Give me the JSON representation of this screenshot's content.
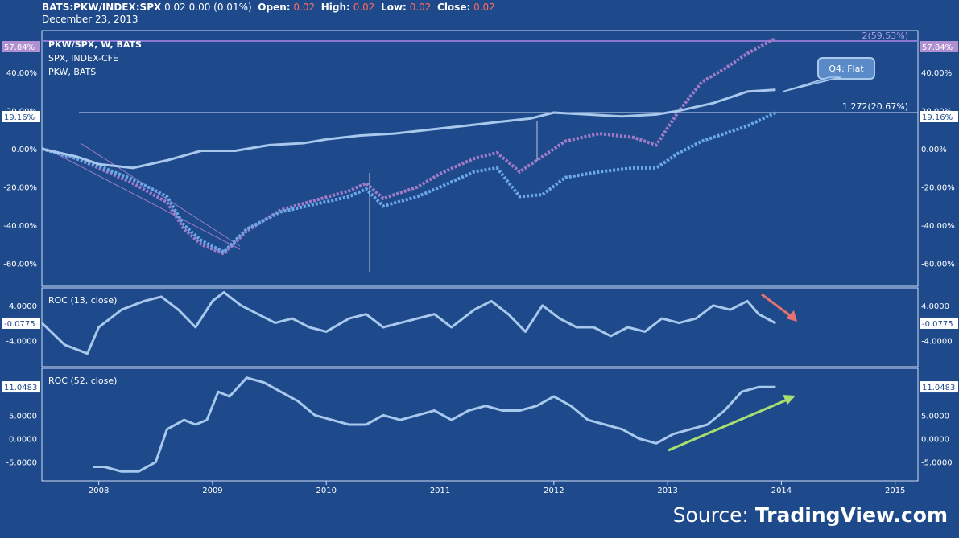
{
  "header": {
    "symbol": "BATS:PKW/INDEX:SPX",
    "last": "0.02",
    "change": "0.00",
    "change_pct": "(0.01%)",
    "open_label": "Open:",
    "open": "0.02",
    "high_label": "High:",
    "high": "0.02",
    "low_label": "Low:",
    "low": "0.02",
    "close_label": "Close:",
    "close": "0.02",
    "date": "December 23, 2013"
  },
  "source": {
    "prefix": "Source: ",
    "brand": "TradingView.com"
  },
  "colors": {
    "background": "#1e4a8c",
    "line": "#a8c8ec",
    "purple": "#a07cc8",
    "blue_candle": "#6aa8e8",
    "red_arrow": "#e87070",
    "green_arrow": "#a8e070",
    "label_bg": "#b090d0"
  },
  "chart_data": [
    {
      "type": "line",
      "panel": "main",
      "legend": [
        "PKW/SPX, W, BATS",
        "SPX, INDEX-CFE",
        "PKW, BATS"
      ],
      "x_ticks": [
        "2008",
        "2009",
        "2010",
        "2011",
        "2012",
        "2013",
        "2014",
        "2015"
      ],
      "y_ticks": [
        "40.00%",
        "20.00%",
        "0.00%",
        "-20.00%",
        "-40.00%",
        "-60.00%"
      ],
      "ylim": [
        -72,
        62
      ],
      "right_label_top": "57.84%",
      "right_label_mid": "19.16%",
      "fib_top": "2(59.53%)",
      "fib_mid": "1.272(20.67%)",
      "callout": "Q4: Flat",
      "series": [
        {
          "x": [
            2007.5,
            2007.8,
            2008.0,
            2008.3,
            2008.6,
            2008.9,
            2009.2,
            2009.5,
            2009.8,
            2010.0,
            2010.3,
            2010.6,
            2010.9,
            2011.2,
            2011.5,
            2011.8,
            2012.0,
            2012.3,
            2012.6,
            2012.9,
            2013.1,
            2013.4,
            2013.7,
            2013.95
          ],
          "values": [
            0,
            -4,
            -8,
            -10,
            -6,
            -1,
            -1,
            2,
            3,
            5,
            7,
            8,
            10,
            12,
            14,
            16,
            19,
            18,
            17,
            18,
            20,
            24,
            30,
            31
          ]
        },
        {
          "x": [
            2007.5,
            2007.8,
            2008.0,
            2008.3,
            2008.6,
            2008.75,
            2008.9,
            2009.1,
            2009.3,
            2009.6,
            2009.9,
            2010.2,
            2010.35,
            2010.5,
            2010.8,
            2011.0,
            2011.3,
            2011.5,
            2011.7,
            2011.9,
            2012.1,
            2012.4,
            2012.7,
            2012.9,
            2013.1,
            2013.3,
            2013.5,
            2013.7,
            2013.95
          ],
          "values": [
            0,
            -5,
            -10,
            -18,
            -28,
            -42,
            -50,
            -55,
            -43,
            -32,
            -27,
            -22,
            -18,
            -26,
            -20,
            -13,
            -5,
            -2,
            -12,
            -4,
            4,
            8,
            6,
            2,
            20,
            35,
            42,
            50,
            58
          ]
        },
        {
          "x": [
            2007.5,
            2007.8,
            2008.0,
            2008.3,
            2008.6,
            2008.75,
            2008.9,
            2009.1,
            2009.3,
            2009.6,
            2009.9,
            2010.2,
            2010.35,
            2010.5,
            2010.8,
            2011.0,
            2011.3,
            2011.5,
            2011.7,
            2011.9,
            2012.1,
            2012.4,
            2012.7,
            2012.9,
            2013.1,
            2013.3,
            2013.5,
            2013.7,
            2013.95
          ],
          "values": [
            0,
            -5,
            -9,
            -16,
            -25,
            -40,
            -48,
            -54,
            -42,
            -33,
            -29,
            -25,
            -21,
            -30,
            -25,
            -20,
            -12,
            -10,
            -25,
            -24,
            -15,
            -12,
            -10,
            -10,
            -2,
            4,
            8,
            12,
            19
          ]
        }
      ]
    },
    {
      "type": "line",
      "panel": "roc13",
      "label": "ROC (13, close)",
      "y_ticks": [
        "4.0000",
        "-4.0000"
      ],
      "ylim": [
        -10,
        8
      ],
      "right_label": "-0.0775",
      "x": [
        2007.5,
        2007.7,
        2007.9,
        2008.0,
        2008.2,
        2008.4,
        2008.55,
        2008.7,
        2008.85,
        2009.0,
        2009.1,
        2009.25,
        2009.4,
        2009.55,
        2009.7,
        2009.85,
        2010.0,
        2010.2,
        2010.35,
        2010.5,
        2010.65,
        2010.8,
        2010.95,
        2011.1,
        2011.3,
        2011.45,
        2011.6,
        2011.75,
        2011.9,
        2012.05,
        2012.2,
        2012.35,
        2012.5,
        2012.65,
        2012.8,
        2012.95,
        2013.1,
        2013.25,
        2013.4,
        2013.55,
        2013.7,
        2013.8,
        2013.95
      ],
      "values": [
        0,
        -5,
        -7,
        -1,
        3,
        5,
        6,
        3,
        -1,
        5,
        7,
        4,
        2,
        0,
        1,
        -1,
        -2,
        1,
        2,
        -1,
        0,
        1,
        2,
        -1,
        3,
        5,
        2,
        -2,
        4,
        1,
        -1,
        -1,
        -3,
        -1,
        -2,
        1,
        0,
        1,
        4,
        3,
        5,
        2,
        -0.08
      ]
    },
    {
      "type": "line",
      "panel": "roc52",
      "label": "ROC (52, close)",
      "y_ticks": [
        "5.0000",
        "0.0000",
        "-5.0000"
      ],
      "ylim": [
        -9,
        15
      ],
      "right_label": "11.0483",
      "x": [
        2007.95,
        2008.05,
        2008.2,
        2008.35,
        2008.5,
        2008.6,
        2008.75,
        2008.85,
        2008.95,
        2009.05,
        2009.15,
        2009.3,
        2009.45,
        2009.6,
        2009.75,
        2009.9,
        2010.05,
        2010.2,
        2010.35,
        2010.5,
        2010.65,
        2010.8,
        2010.95,
        2011.1,
        2011.25,
        2011.4,
        2011.55,
        2011.7,
        2011.85,
        2012.0,
        2012.15,
        2012.3,
        2012.45,
        2012.6,
        2012.75,
        2012.9,
        2013.05,
        2013.2,
        2013.35,
        2013.5,
        2013.65,
        2013.8,
        2013.95
      ],
      "values": [
        -6,
        -6,
        -7,
        -7,
        -5,
        2,
        4,
        3,
        4,
        10,
        9,
        13,
        12,
        10,
        8,
        5,
        4,
        3,
        3,
        5,
        4,
        5,
        6,
        4,
        6,
        7,
        6,
        6,
        7,
        9,
        7,
        4,
        3,
        2,
        0,
        -1,
        1,
        2,
        3,
        6,
        10,
        11,
        11
      ]
    }
  ]
}
